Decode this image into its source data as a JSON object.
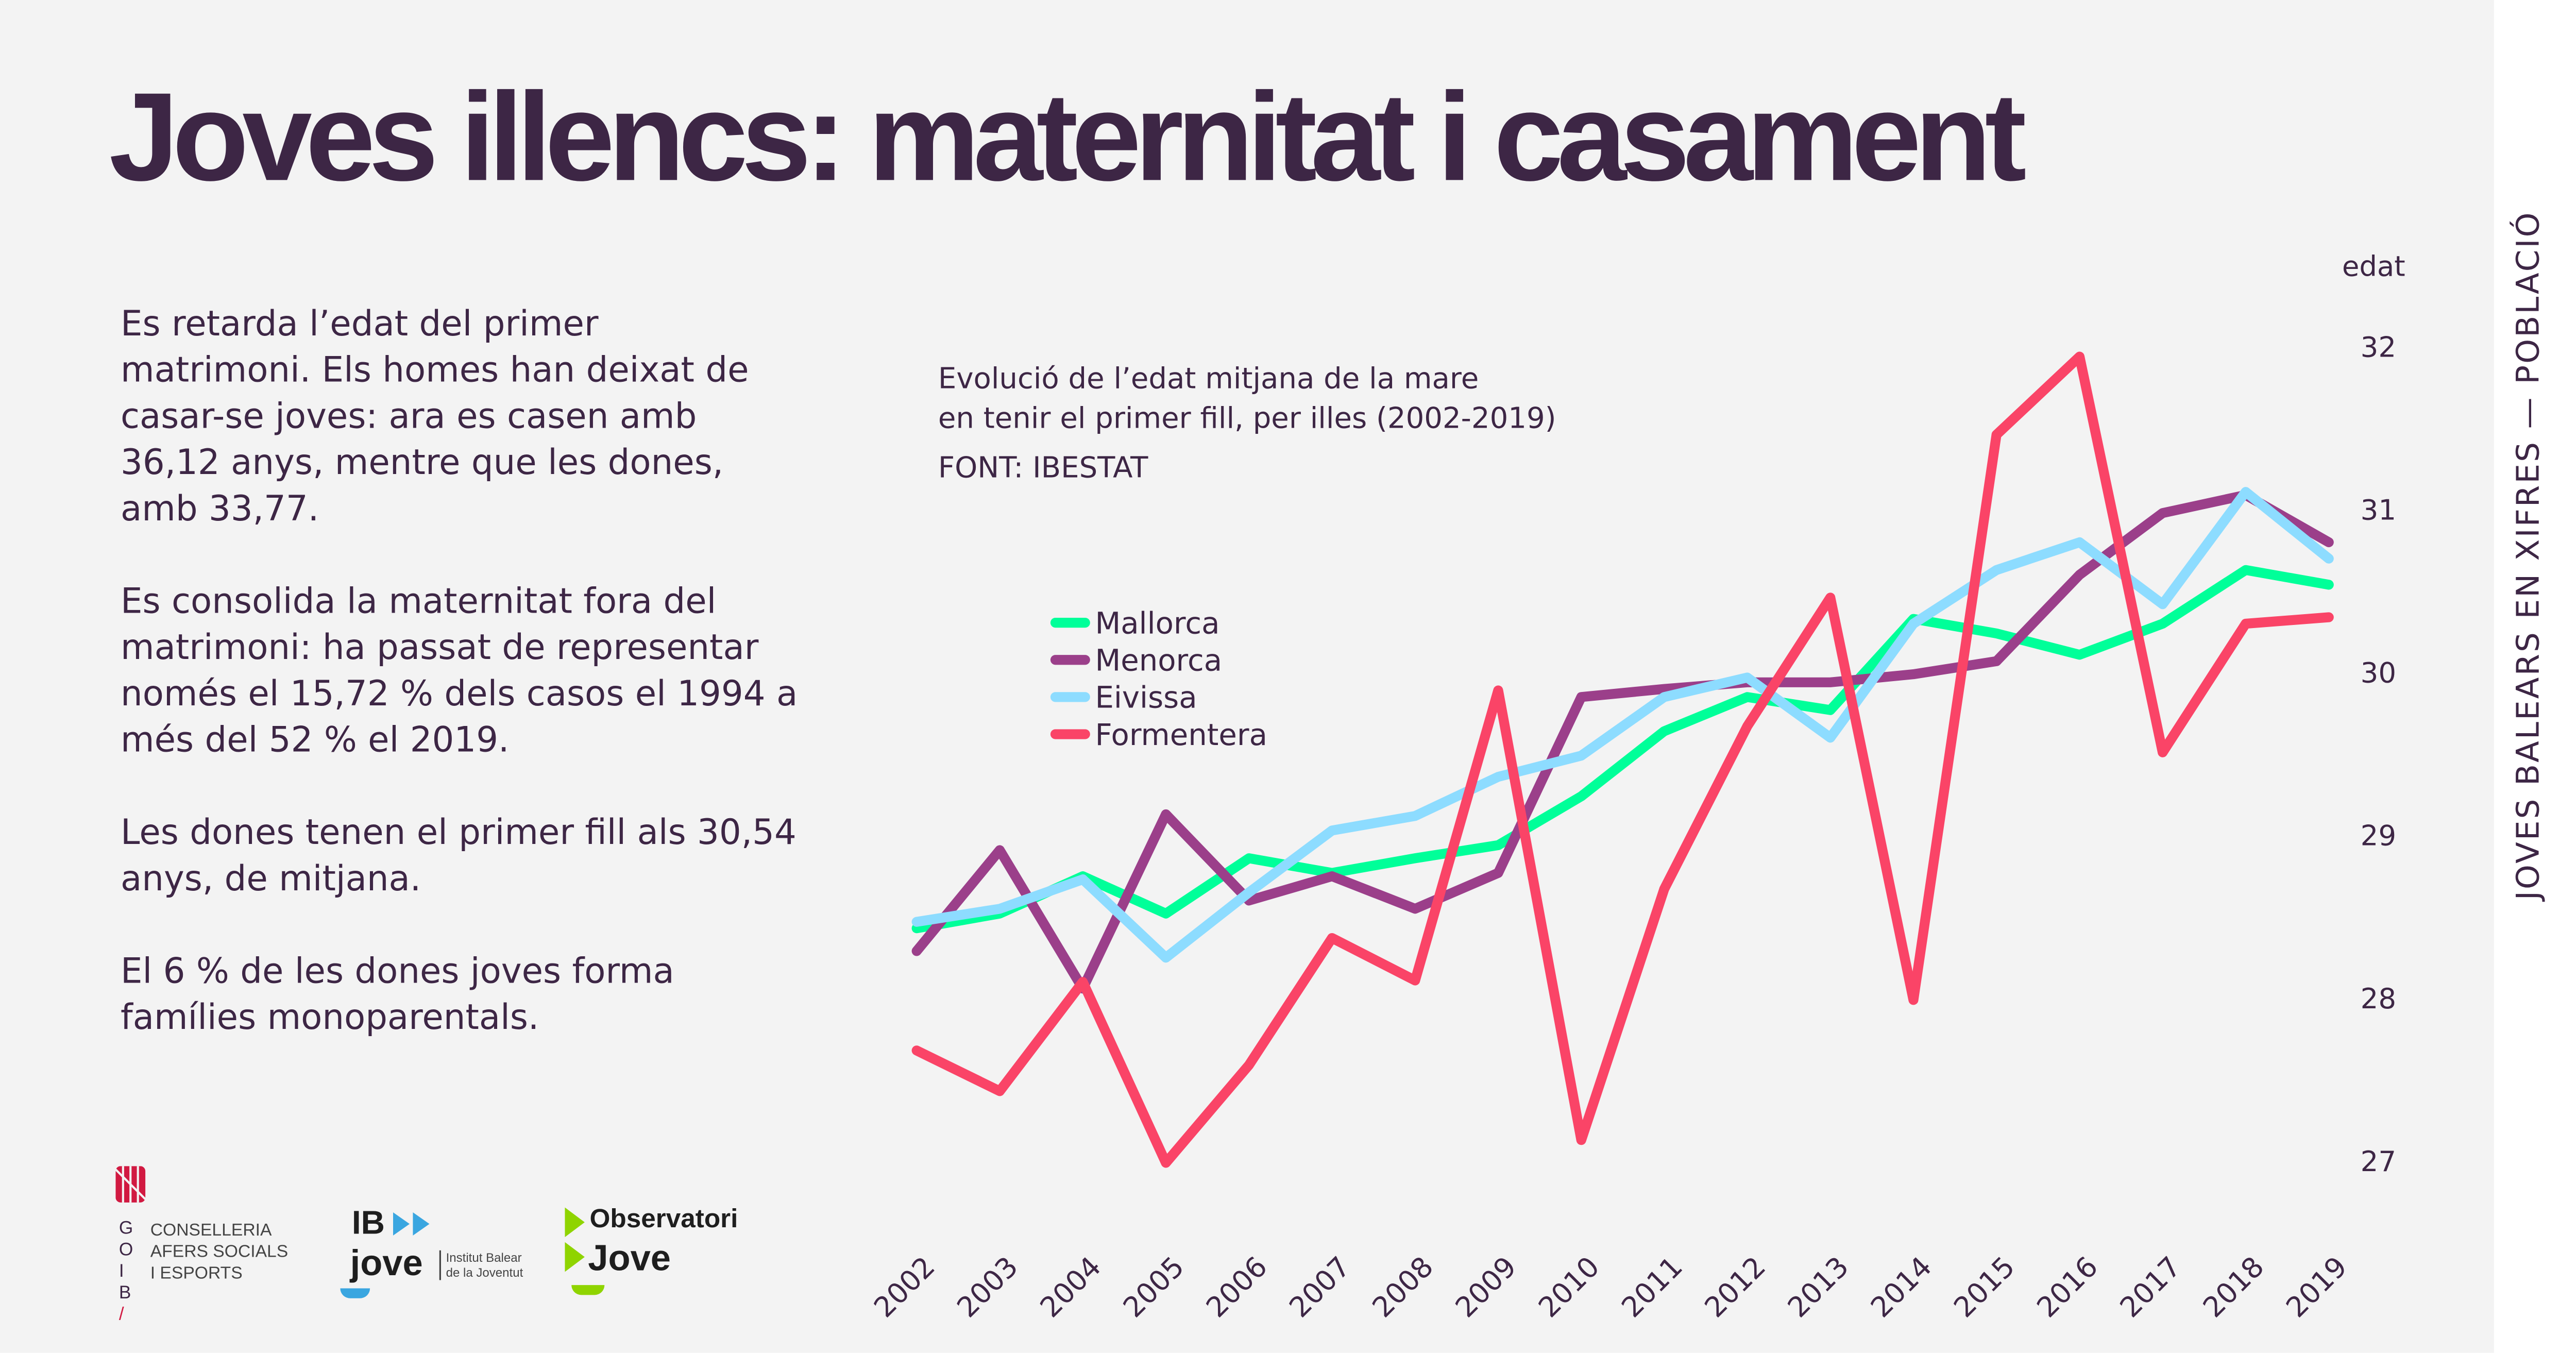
{
  "title": "Joves illencs: maternitat i casament",
  "side_label": "JOVES BALEARS EN XIFRES — POBLACIÓ",
  "paragraphs": [
    "Es retarda l’edat del primer matrimoni. Els homes han deixat de casar-se joves: ara es casen amb 36,12 anys, mentre que les dones, amb 33,77.",
    "Es consolida la maternitat fora del matrimoni: ha passat de representar només el 15,72 % dels casos el 1994 a més del 52 % el 2019.",
    "Les dones tenen el primer fill als 30,54 anys, de mitjana.",
    "El 6 % de les dones joves forma famílies monoparentals."
  ],
  "logos": {
    "goib": {
      "letters": [
        "G",
        "O",
        "I",
        "B"
      ],
      "lines": [
        "CONSELLERIA",
        "AFERS SOCIALS",
        "I ESPORTS"
      ]
    },
    "ibjove": {
      "top": "IB",
      "bottom": "jove",
      "sub1": "Institut Balear",
      "sub2": "de la Joventut"
    },
    "observatori": {
      "top": "Observatori",
      "bottom": "Jove"
    }
  },
  "chart_data": {
    "type": "line",
    "title_lines": [
      "Evolució de l’edat mitjana de la mare",
      "en tenir el primer fill, per illes (2002-2019)"
    ],
    "source": "FONT: IBESTAT",
    "ylabel": "edat",
    "ylim": [
      27,
      32
    ],
    "yticks": [
      27,
      28,
      29,
      30,
      31,
      32
    ],
    "grid": false,
    "legend_placement": "upper-left",
    "categories": [
      2002,
      2003,
      2004,
      2005,
      2006,
      2007,
      2008,
      2009,
      2010,
      2011,
      2012,
      2013,
      2014,
      2015,
      2016,
      2017,
      2018,
      2019
    ],
    "series": [
      {
        "name": "Mallorca",
        "color": "#00ff99",
        "values": [
          28.43,
          28.52,
          28.75,
          28.52,
          28.86,
          28.77,
          28.86,
          28.94,
          29.24,
          29.64,
          29.85,
          29.77,
          30.33,
          30.24,
          30.11,
          30.3,
          30.63,
          30.54
        ]
      },
      {
        "name": "Menorca",
        "color": "#9b3f8a",
        "values": [
          28.29,
          28.91,
          28.06,
          29.13,
          28.6,
          28.75,
          28.55,
          28.77,
          29.85,
          29.9,
          29.94,
          29.94,
          29.99,
          30.07,
          30.6,
          30.98,
          31.09,
          30.8
        ]
      },
      {
        "name": "Eivissa",
        "color": "#8ddcff",
        "values": [
          28.47,
          28.55,
          28.73,
          28.25,
          28.65,
          29.03,
          29.12,
          29.36,
          29.49,
          29.85,
          29.97,
          29.6,
          30.3,
          30.63,
          30.8,
          30.42,
          31.11,
          30.7
        ]
      },
      {
        "name": "Formentera",
        "color": "#fa4467",
        "values": [
          27.68,
          27.43,
          28.1,
          26.99,
          27.59,
          28.37,
          28.11,
          29.89,
          27.13,
          28.67,
          29.67,
          30.46,
          27.99,
          31.46,
          31.94,
          29.51,
          30.3,
          30.34
        ]
      }
    ]
  }
}
